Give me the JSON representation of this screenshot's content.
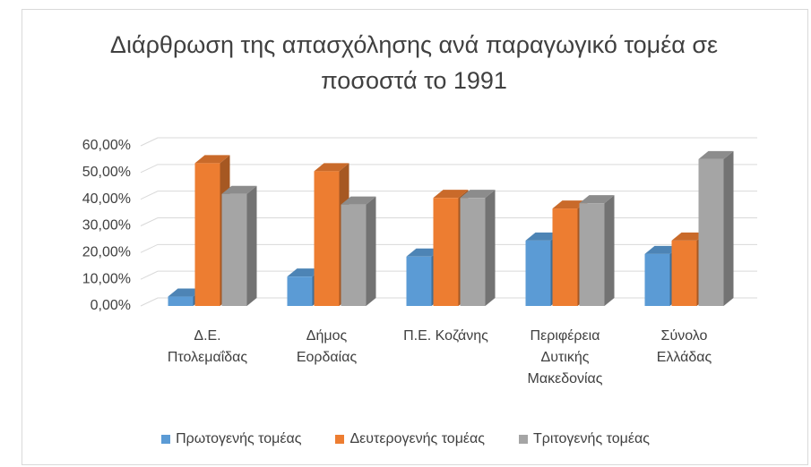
{
  "chart_data": {
    "type": "bar3d",
    "title": "Διάρθρωση της απασχόλησης ανά παραγωγικό τομέα σε ποσοστά το 1991",
    "categories": [
      "Δ.Ε. Πτολεμαΐδας",
      "Δήμος Εορδαίας",
      "Π.Ε. Κοζάνης",
      "Περιφέρεια Δυτικής Μακεδονίας",
      "Σύνολο Ελλάδας"
    ],
    "series": [
      {
        "name": "Πρωτογενής τομέας",
        "color": "#5b9bd5",
        "values": [
          3.5,
          11,
          18.5,
          24.5,
          19.5
        ]
      },
      {
        "name": "Δευτερογενής τομέας",
        "color": "#ed7d31",
        "values": [
          53.5,
          50.5,
          40.5,
          36.5,
          24.5
        ]
      },
      {
        "name": "Τριτογενής τομέας",
        "color": "#a5a5a5",
        "values": [
          42,
          38,
          40.5,
          38.5,
          55
        ]
      }
    ],
    "ylim": [
      0,
      60
    ],
    "yticks": [
      {
        "value": 0,
        "label": "0,00%"
      },
      {
        "value": 10,
        "label": "10,00%"
      },
      {
        "value": 20,
        "label": "20,00%"
      },
      {
        "value": 30,
        "label": "30,00%"
      },
      {
        "value": 40,
        "label": "40,00%"
      },
      {
        "value": 50,
        "label": "50,00%"
      },
      {
        "value": 60,
        "label": "60,00%"
      }
    ],
    "grid": true,
    "legend": "bottom"
  }
}
